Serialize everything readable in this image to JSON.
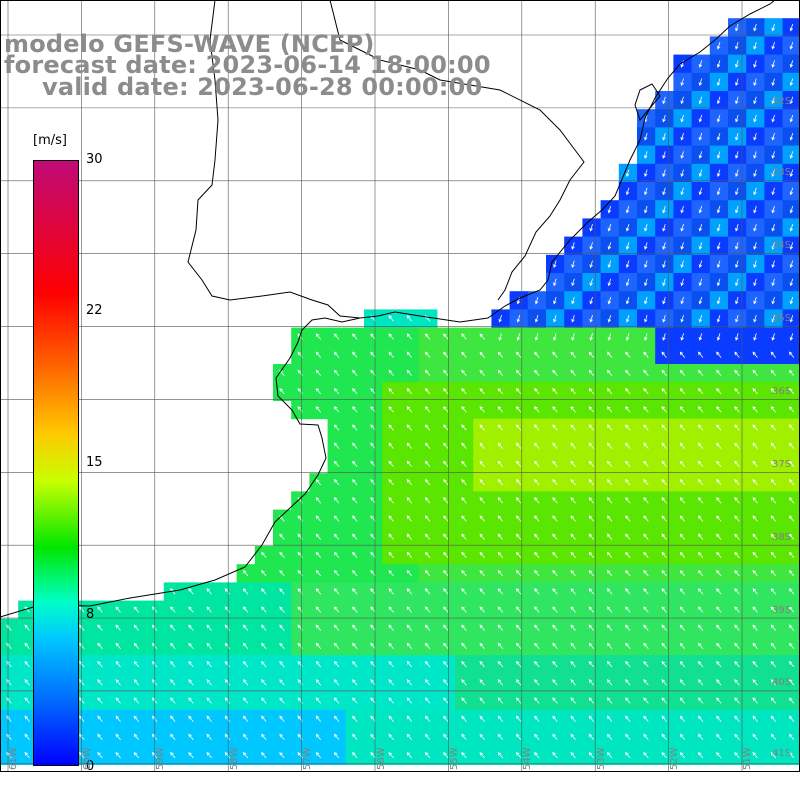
{
  "title": {
    "model": "modelo GEFS-WAVE (NCEP)",
    "forecast": "forecast date: 2023-06-14 18:00:00",
    "valid": "valid date: 2023-06-28 00:00:00"
  },
  "colorbar": {
    "units": "[m/s]",
    "ticks": [
      "30",
      "22",
      "15",
      "8",
      "0"
    ],
    "min": 0,
    "max": 30,
    "colors": [
      "#0000ff",
      "#0064ff",
      "#00c8ff",
      "#00ffc8",
      "#00e600",
      "#c8ff00",
      "#ffc800",
      "#ff6400",
      "#ff0000",
      "#c00a78"
    ]
  },
  "grid_labels": {
    "lat": [
      "32S",
      "33S",
      "34S",
      "35S",
      "36S",
      "37S",
      "38S",
      "39S",
      "40S",
      "41S"
    ],
    "lon": [
      "61W",
      "60W",
      "59W",
      "58W",
      "57W",
      "56W",
      "55W",
      "54W",
      "53W",
      "52W",
      "51W"
    ]
  },
  "map": {
    "region": "Rio de la Plata / Southwest Atlantic",
    "field": "wind speed with direction arrows"
  }
}
